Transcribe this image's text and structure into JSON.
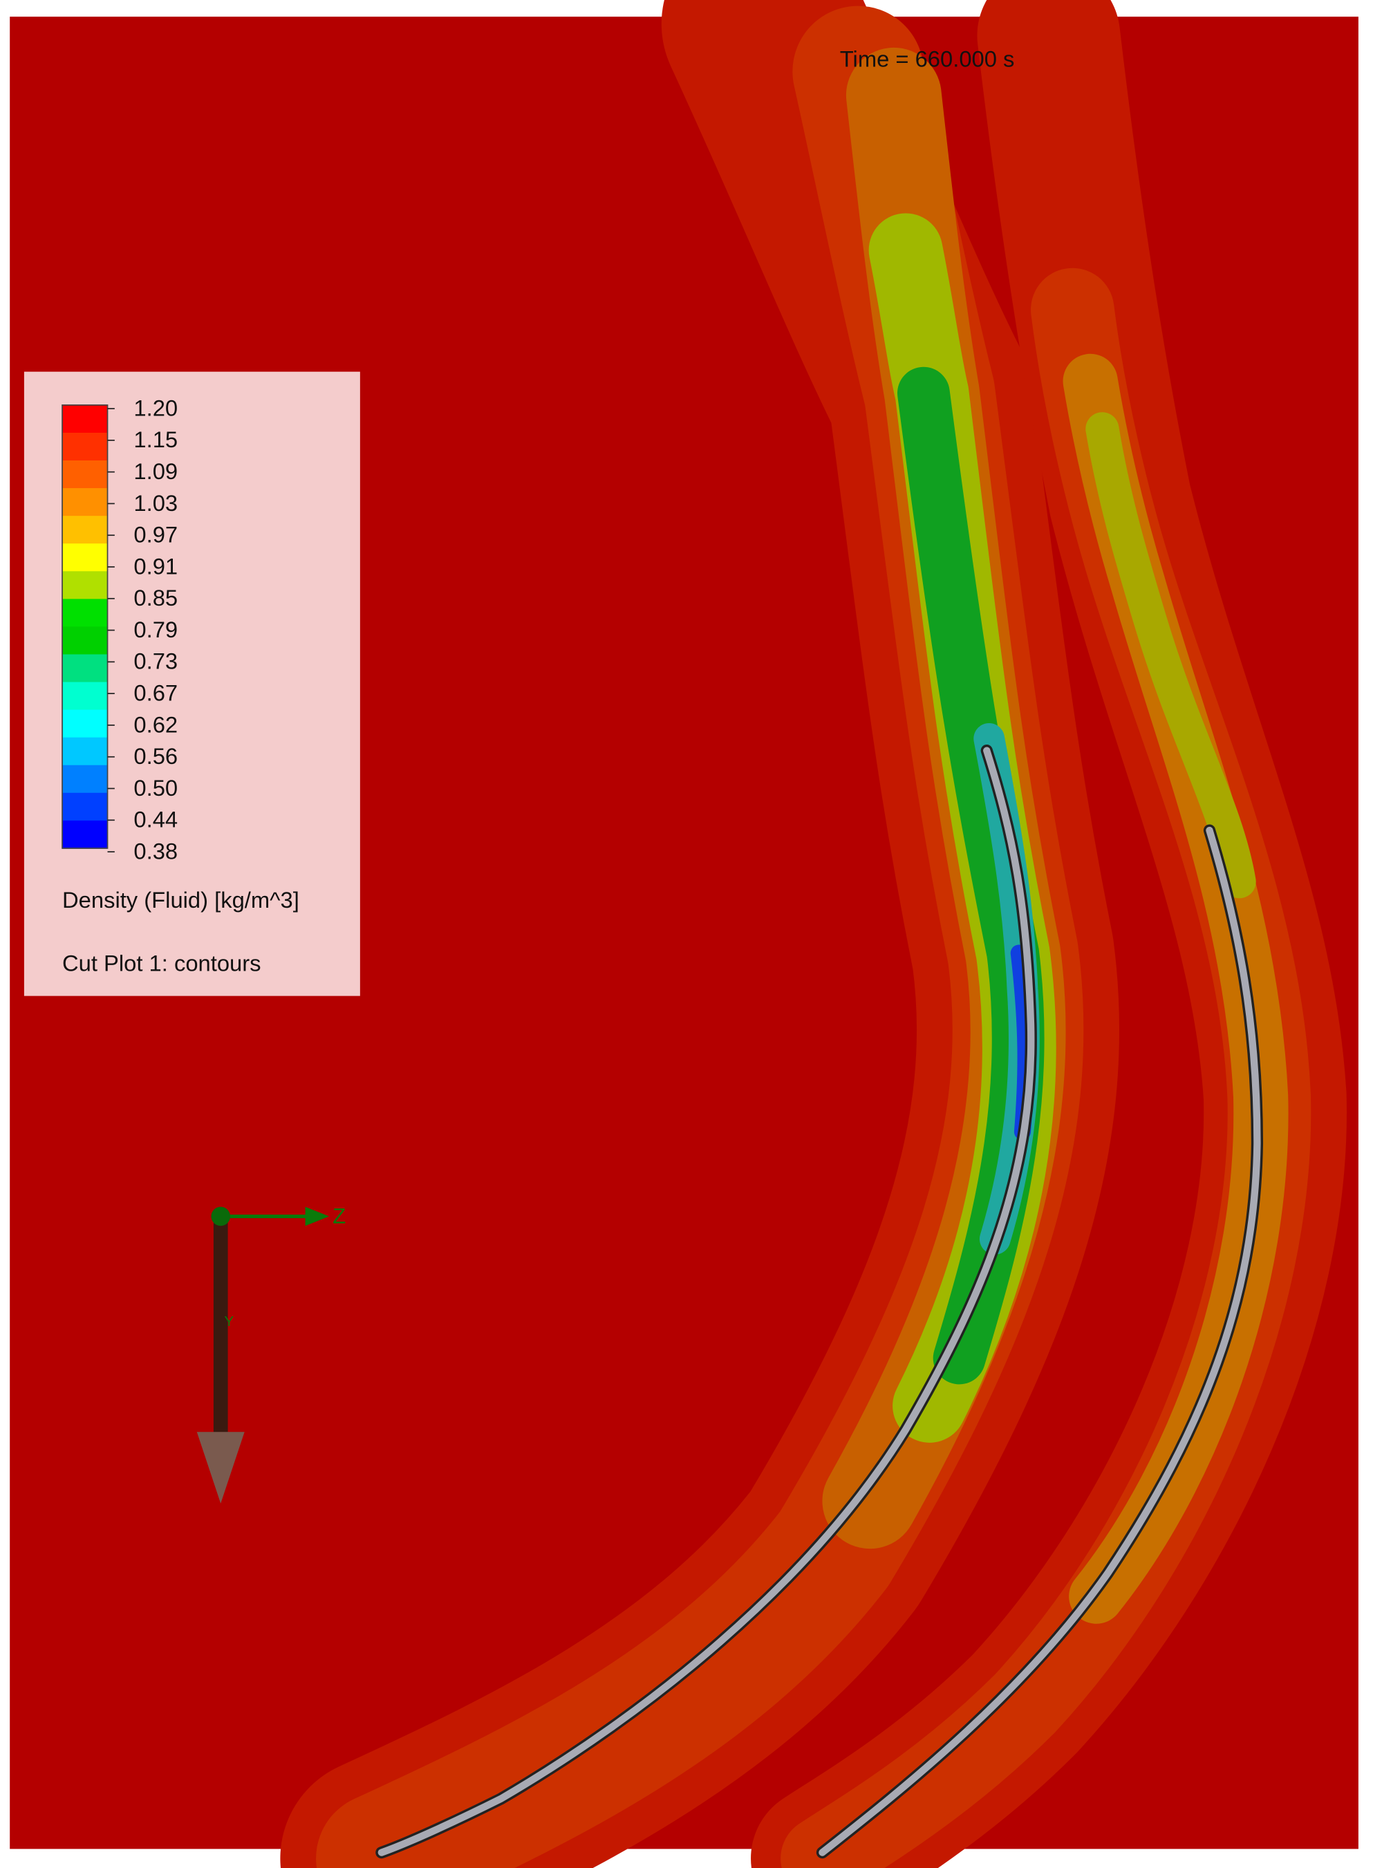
{
  "time_label": "Time = 660.000 s",
  "legend": {
    "ticks": [
      "1.20",
      "1.15",
      "1.09",
      "1.03",
      "0.97",
      "0.91",
      "0.85",
      "0.79",
      "0.73",
      "0.67",
      "0.62",
      "0.56",
      "0.50",
      "0.44",
      "0.38"
    ],
    "quantity": "Density (Fluid) [kg/m^3]",
    "plot_name": "Cut Plot 1: contours"
  },
  "triad": {
    "z": "Z",
    "y": "Y"
  }
}
